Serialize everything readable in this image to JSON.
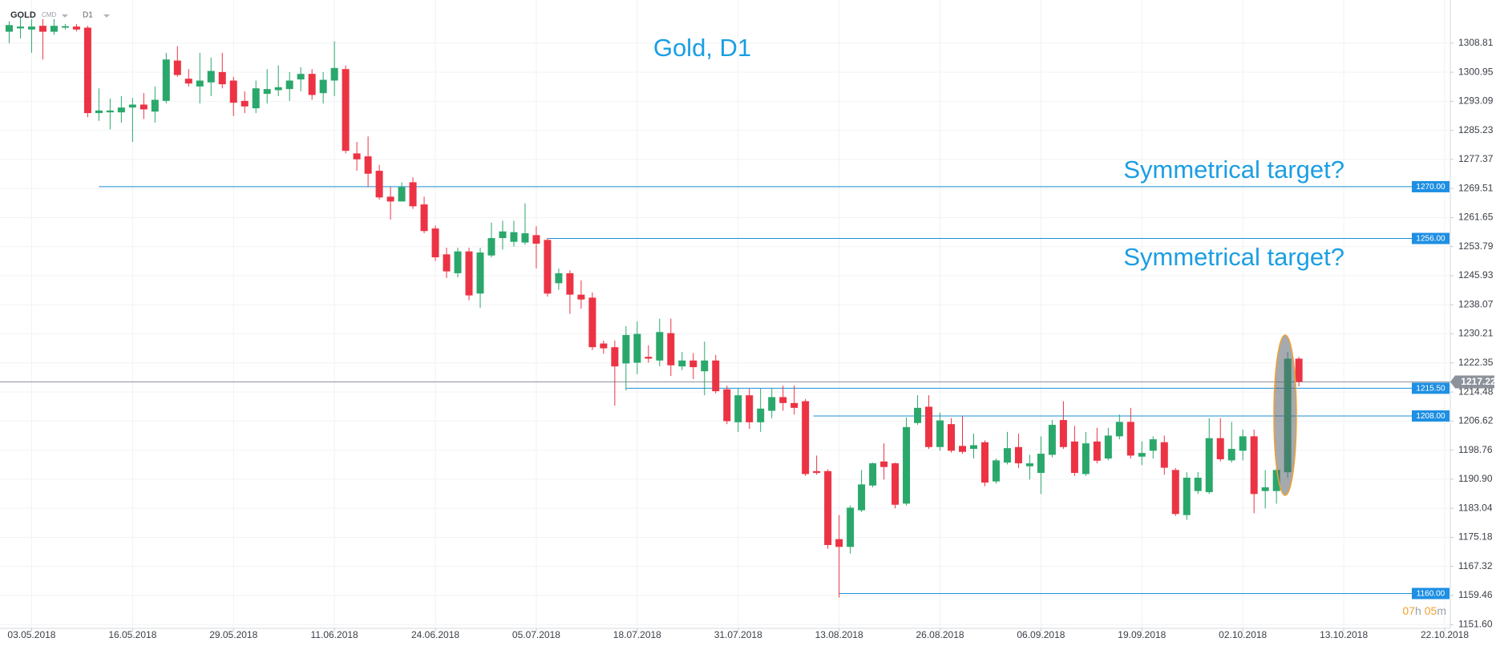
{
  "header": {
    "symbol": "GOLD",
    "kind": "CMD",
    "timeframe": "D1"
  },
  "chart_data": {
    "type": "candlestick",
    "title": "Gold, D1",
    "annotations": [
      "Symmetrical target?",
      "Symmetrical target?"
    ],
    "up_color": "#2aa86b",
    "down_color": "#ec3344",
    "level_color": "#1b8fd6",
    "price_color": "#8c929b",
    "grid": true,
    "xlim": [
      -0.82,
      128.5
    ],
    "xticks": [
      {
        "value": 2,
        "label": "03.05.2018"
      },
      {
        "value": 11,
        "label": "16.05.2018"
      },
      {
        "value": 20,
        "label": "29.05.2018"
      },
      {
        "value": 29,
        "label": "11.06.2018"
      },
      {
        "value": 38,
        "label": "24.06.2018"
      },
      {
        "value": 47,
        "label": "05.07.2018"
      },
      {
        "value": 56,
        "label": "18.07.2018"
      },
      {
        "value": 65,
        "label": "31.07.2018"
      },
      {
        "value": 74,
        "label": "13.08.2018"
      },
      {
        "value": 83,
        "label": "26.08.2018"
      },
      {
        "value": 92,
        "label": "06.09.2018"
      },
      {
        "value": 101,
        "label": "19.09.2018"
      },
      {
        "value": 110,
        "label": "02.10.2018"
      },
      {
        "value": 119,
        "label": "13.10.2018"
      },
      {
        "value": 128,
        "label": "22.10.2018"
      }
    ],
    "ylim": [
      1150.57,
      1320.48
    ],
    "yticks": [
      1308.81,
      1300.95,
      1293.09,
      1285.23,
      1277.37,
      1269.51,
      1261.65,
      1253.79,
      1245.93,
      1238.07,
      1230.21,
      1222.35,
      1214.48,
      1206.62,
      1198.76,
      {
        "value": 1190.9,
        "label": "1190.90"
      },
      1183.04,
      1175.18,
      1167.32,
      1159.46,
      {
        "value": 1151.6,
        "label": "1151.60"
      }
    ],
    "open": [
      1311.9,
      1312.8,
      1312.5,
      1313.5,
      1311.9,
      1313,
      1313.3,
      1313,
      1289.9,
      1290.1,
      1290.1,
      1291.4,
      1292.2,
      1290.3,
      1293.2,
      1304.1,
      1299.2,
      1297.1,
      1298.2,
      1301,
      1298.7,
      1293.2,
      1291.2,
      1295.1,
      1296.1,
      1296.4,
      1299,
      1300.5,
      1295.3,
      1298.7,
      1301.8,
      1279,
      1278.2,
      1274.3,
      1267.3,
      1266,
      1271.2,
      1265.2,
      1258.7,
      1251.7,
      1246.6,
      1252.5,
      1241.1,
      1251.4,
      1256.1,
      1255.1,
      1254.9,
      1256.9,
      1255.6,
      1243.9,
      1246.6,
      1240.8,
      1240,
      1227.6,
      1226.6,
      1222.2,
      1222.4,
      1224,
      1223,
      1230.4,
      1221.4,
      1223,
      1220.1,
      1223,
      1215.2,
      1206.3,
      1213.6,
      1206.3,
      1209.4,
      1213.1,
      1211.5,
      1212,
      1193.1,
      1193.1,
      1174.7,
      1172.6,
      1182.5,
      1189.2,
      1195.7,
      1195.2,
      1184.3,
      1206.1,
      1210.5,
      1199.6,
      1205.8,
      1199.9,
      1199.1,
      1200.9,
      1190.3,
      1195.4,
      1199.6,
      1194.4,
      1192.6,
      1197.5,
      1206.9,
      1201.1,
      1192.3,
      1201.1,
      1196.5,
      1202.5,
      1206.4,
      1197,
      1198.6,
      1200.9,
      1193.4,
      1181.2,
      1187.7,
      1187.4,
      1202,
      1196,
      1198.6,
      1202.5,
      1187.7,
      1187.7,
      1192.8,
      1223.5
    ],
    "high": [
      1314.7,
      1315.8,
      1315.3,
      1315.3,
      1315.3,
      1314,
      1314,
      1313.5,
      1296.6,
      1293.8,
      1294.5,
      1294,
      1295.3,
      1297.1,
      1306.2,
      1308,
      1301.8,
      1306.2,
      1304.9,
      1306.2,
      1299.7,
      1295.8,
      1298.7,
      1301.8,
      1302.8,
      1301,
      1302.3,
      1301.8,
      1301,
      1309.3,
      1302.8,
      1282.1,
      1283.6,
      1275.9,
      1269.9,
      1271.2,
      1272.5,
      1267.3,
      1259.5,
      1253.5,
      1253.5,
      1253.5,
      1253.5,
      1260.3,
      1260.8,
      1260.8,
      1265.5,
      1259.3,
      1256.1,
      1247.9,
      1247.4,
      1244.7,
      1241.4,
      1228.4,
      1228.4,
      1232.3,
      1233.6,
      1227.1,
      1234.3,
      1234.3,
      1225.3,
      1225,
      1228.1,
      1224.5,
      1216.2,
      1215.4,
      1215.4,
      1215.4,
      1215.4,
      1216.2,
      1216.2,
      1212.6,
      1197.3,
      1193.6,
      1181.2,
      1183.8,
      1193.4,
      1195.4,
      1200.6,
      1195.4,
      1207.6,
      1213.6,
      1213.6,
      1208.9,
      1207.4,
      1207.9,
      1203.2,
      1201.4,
      1196.5,
      1203.7,
      1203.2,
      1197.5,
      1202.5,
      1206.9,
      1212,
      1205.3,
      1203.7,
      1204.8,
      1204.8,
      1208.4,
      1210.2,
      1201.1,
      1202.5,
      1202.7,
      1193.9,
      1192.8,
      1192.8,
      1207.4,
      1207.4,
      1206.4,
      1204.3,
      1204.3,
      1193.4,
      1193.9,
      1225.3,
      1224
    ],
    "low": [
      1308.8,
      1310.1,
      1306.2,
      1304.4,
      1311.1,
      1312.5,
      1312,
      1288.8,
      1287.8,
      1285.5,
      1287.3,
      1282.1,
      1288.3,
      1287.3,
      1292.5,
      1299.7,
      1297.1,
      1292.5,
      1294.5,
      1296.6,
      1289.1,
      1289.9,
      1289.9,
      1292.5,
      1294.5,
      1293.2,
      1295.8,
      1293.5,
      1292.5,
      1294.5,
      1279,
      1274.3,
      1269.9,
      1266.5,
      1261.1,
      1266,
      1264,
      1257.4,
      1249.9,
      1245.3,
      1245.5,
      1239.3,
      1237.2,
      1250.9,
      1253,
      1253.8,
      1254.3,
      1247.9,
      1240.3,
      1242.1,
      1235.6,
      1237,
      1225.8,
      1224.8,
      1210.8,
      1214.9,
      1219.3,
      1222.4,
      1221.4,
      1218.8,
      1220.4,
      1218,
      1213.6,
      1214.1,
      1205.8,
      1203.7,
      1204.5,
      1203.7,
      1207.4,
      1209.4,
      1208.4,
      1191.8,
      1192.1,
      1172.1,
      1158.9,
      1170.8,
      1182,
      1188.7,
      1190.8,
      1183,
      1183.8,
      1205.6,
      1199.1,
      1198.6,
      1198.1,
      1197.8,
      1196.5,
      1189,
      1189.7,
      1194.9,
      1193.9,
      1190.8,
      1186.9,
      1196.8,
      1199.1,
      1191.8,
      1191.8,
      1195.2,
      1196,
      1201.7,
      1196.5,
      1194.7,
      1196.5,
      1192.1,
      1181,
      1179.9,
      1186.9,
      1186.9,
      1195.7,
      1195.4,
      1196,
      1181.7,
      1183,
      1184.3,
      1191.3,
      1216
    ],
    "close": [
      1313.7,
      1313.3,
      1313.3,
      1311.9,
      1313.5,
      1313.4,
      1312.5,
      1289.9,
      1290.6,
      1290.6,
      1291.4,
      1292.2,
      1290.9,
      1293.5,
      1304.4,
      1300.2,
      1297.9,
      1298.7,
      1301.3,
      1297.7,
      1292.7,
      1291.7,
      1296.6,
      1296.4,
      1296.9,
      1298.7,
      1300.5,
      1294.8,
      1298.9,
      1302.1,
      1279.7,
      1277.4,
      1273.5,
      1267.1,
      1266,
      1269.9,
      1264.7,
      1258,
      1250.9,
      1247.1,
      1252.5,
      1240.6,
      1252.2,
      1256.1,
      1257.9,
      1257.7,
      1257.4,
      1254.6,
      1241.1,
      1246.6,
      1240.8,
      1239.5,
      1226.6,
      1226.3,
      1221.4,
      1229.9,
      1230.2,
      1223.5,
      1230.7,
      1221.7,
      1223,
      1221.2,
      1223,
      1214.7,
      1206.6,
      1213.6,
      1206.3,
      1210,
      1213.1,
      1211.5,
      1210.2,
      1192.3,
      1192.6,
      1173.1,
      1172.6,
      1183.2,
      1189.5,
      1195.2,
      1194.2,
      1184,
      1205,
      1210.2,
      1199.6,
      1206.8,
      1198.6,
      1198.3,
      1200.1,
      1190,
      1196,
      1199.3,
      1195.2,
      1195.2,
      1197.8,
      1205.6,
      1199.6,
      1192.6,
      1200.6,
      1195.9,
      1202.7,
      1206.4,
      1197.3,
      1198,
      1201.7,
      1194,
      1181.5,
      1191.3,
      1191.3,
      1202,
      1196.3,
      1199.1,
      1202.5,
      1186.9,
      1188.7,
      1193.4,
      1223.5,
      1217.22
    ],
    "levels": [
      {
        "value": 1270,
        "label": "1270.00",
        "from": 8
      },
      {
        "value": 1256,
        "label": "1256.00",
        "from": 48
      },
      {
        "value": 1215.5,
        "label": "1215.50",
        "from": 55
      },
      {
        "value": 1208,
        "label": "1208.00",
        "from": 71.7
      },
      {
        "value": 1160,
        "label": "1160.00",
        "from": 74
      }
    ],
    "price": 1217.22,
    "countdown": [
      "07",
      "h",
      "05",
      "m"
    ]
  }
}
